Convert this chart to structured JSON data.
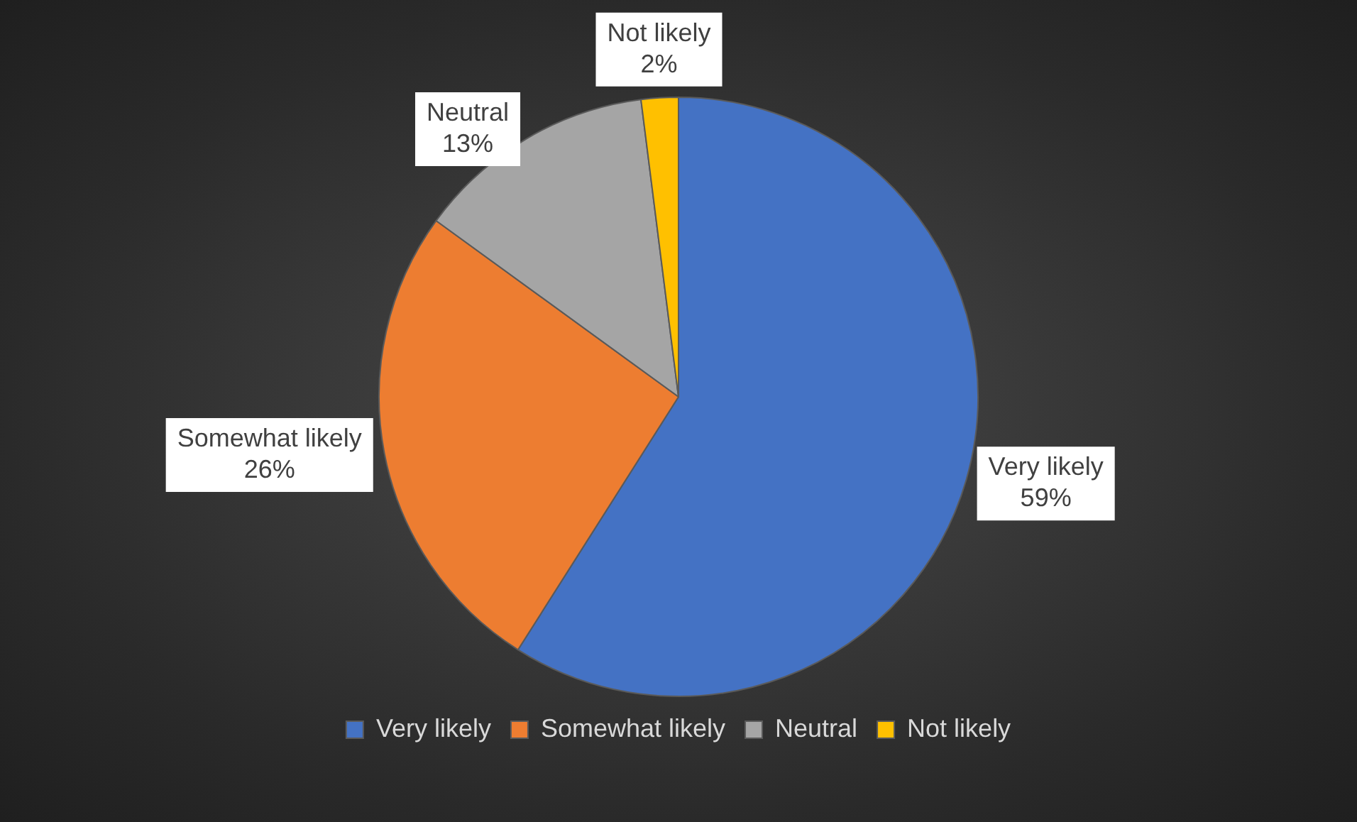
{
  "chart_data": {
    "type": "pie",
    "categories": [
      "Very likely",
      "Somewhat likely",
      "Neutral",
      "Not likely"
    ],
    "values": [
      59,
      26,
      13,
      2
    ],
    "colors": [
      "#4472c4",
      "#ed7d31",
      "#a5a5a5",
      "#ffc000"
    ],
    "value_labels": [
      "59%",
      "26%",
      "13%",
      "2%"
    ],
    "legend": "bottom"
  }
}
